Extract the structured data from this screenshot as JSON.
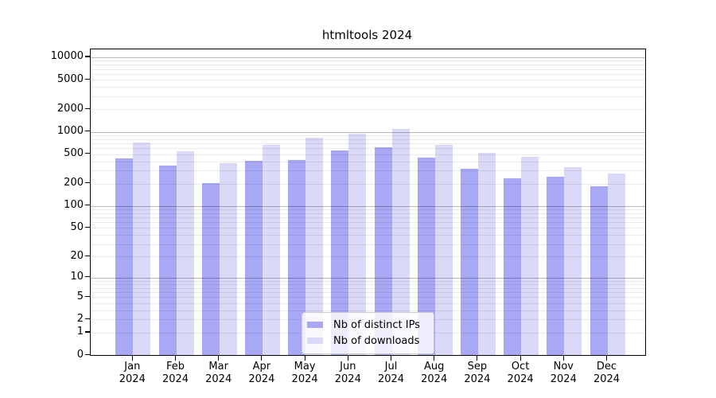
{
  "title": "htmltools 2024",
  "colors": {
    "bar_distinct_ips": "#a8a8f5",
    "bar_downloads": "#dadaf8",
    "grid_minor": "rgba(0,0,0,0.08)",
    "grid_major": "rgba(0,0,0,0.28)",
    "axis": "#000000",
    "legend_border": "#cccccc",
    "background": "#ffffff"
  },
  "legend": {
    "items": [
      {
        "label": "Nb of distinct IPs",
        "color": "#a8a8f5"
      },
      {
        "label": "Nb of downloads",
        "color": "#dadaf8"
      }
    ]
  },
  "chart_data": {
    "type": "bar",
    "title": "htmltools 2024",
    "scale": "log10(value+1), linear-to-zero baseline",
    "categories": [
      "Jan 2024",
      "Feb 2024",
      "Mar 2024",
      "Apr 2024",
      "May 2024",
      "Jun 2024",
      "Jul 2024",
      "Aug 2024",
      "Sep 2024",
      "Oct 2024",
      "Nov 2024",
      "Dec 2024"
    ],
    "series": [
      {
        "name": "Nb of distinct IPs",
        "color": "#a8a8f5",
        "values": [
          440,
          350,
          205,
          410,
          415,
          555,
          625,
          445,
          315,
          235,
          245,
          185
        ]
      },
      {
        "name": "Nb of downloads",
        "color": "#dadaf8",
        "values": [
          710,
          540,
          375,
          660,
          835,
          930,
          1100,
          660,
          525,
          460,
          335,
          275
        ]
      }
    ],
    "y_ticks": [
      10000,
      5000,
      2000,
      1000,
      500,
      200,
      100,
      50,
      20,
      10,
      5,
      2,
      1,
      0
    ],
    "ylim": [
      0,
      12800
    ],
    "xlabel": "",
    "ylabel": "",
    "grid": "horizontal minor lines at 1-9 steps per decade, darker lines at powers of 10",
    "legend_position": "lower center inside plot"
  }
}
